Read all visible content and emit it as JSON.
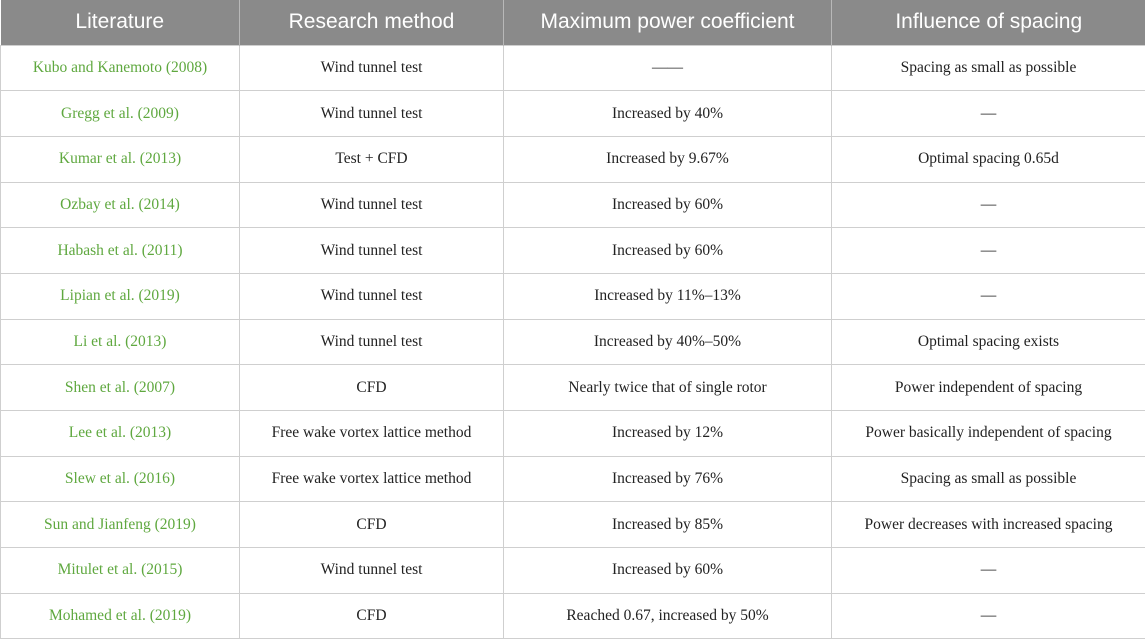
{
  "table": {
    "headers": [
      "Literature",
      "Research method",
      "Maximum power coefficient",
      "Influence of spacing"
    ],
    "rows": [
      [
        "Kubo and Kanemoto (2008)",
        "Wind tunnel test",
        "——",
        "Spacing as small as possible"
      ],
      [
        "Gregg et al. (2009)",
        "Wind tunnel test",
        "Increased by 40%",
        "—"
      ],
      [
        "Kumar et al. (2013)",
        "Test + CFD",
        "Increased by 9.67%",
        "Optimal spacing 0.65d"
      ],
      [
        "Ozbay et al. (2014)",
        "Wind tunnel test",
        "Increased by 60%",
        "—"
      ],
      [
        "Habash et al. (2011)",
        "Wind tunnel test",
        "Increased by 60%",
        "—"
      ],
      [
        "Lipian et al. (2019)",
        "Wind tunnel test",
        "Increased by 11%–13%",
        "—"
      ],
      [
        "Li et al. (2013)",
        "Wind tunnel test",
        "Increased by 40%–50%",
        "Optimal spacing exists"
      ],
      [
        "Shen et al. (2007)",
        "CFD",
        "Nearly twice that of single rotor",
        "Power independent of spacing"
      ],
      [
        "Lee et al. (2013)",
        "Free wake vortex lattice method",
        "Increased by 12%",
        "Power basically independent of spacing"
      ],
      [
        "Slew et al. (2016)",
        "Free wake vortex lattice method",
        "Increased by 76%",
        "Spacing as small as possible"
      ],
      [
        "Sun and Jianfeng (2019)",
        "CFD",
        "Increased by 85%",
        "Power decreases with increased spacing"
      ],
      [
        "Mitulet et al. (2015)",
        "Wind tunnel test",
        "Increased by 60%",
        "—"
      ],
      [
        "Mohamed et al. (2019)",
        "CFD",
        "Reached 0.67, increased by 50%",
        "—"
      ]
    ]
  },
  "colors": {
    "header_bg": "#8a8a8a",
    "header_text": "#ffffff",
    "literature_link": "#5fa83f",
    "body_text": "#222222",
    "grid": "#cfcfcf"
  }
}
